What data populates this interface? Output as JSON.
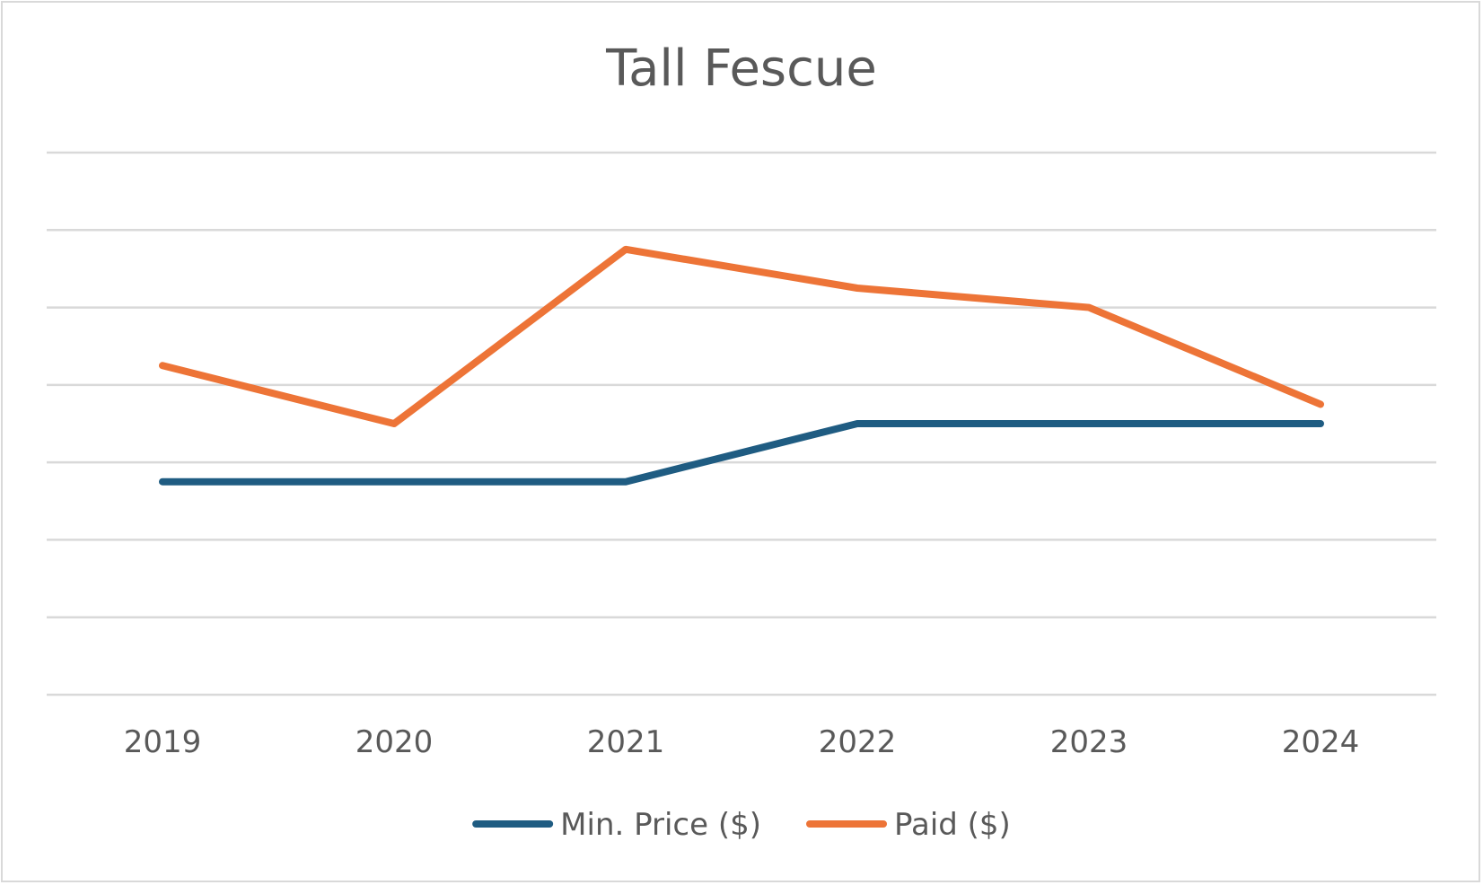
{
  "chart_data": {
    "type": "line",
    "title": "Tall Fescue",
    "xlabel": "",
    "ylabel": "",
    "categories": [
      "2019",
      "2020",
      "2021",
      "2022",
      "2023",
      "2024"
    ],
    "ylim": [
      0,
      7
    ],
    "grid": true,
    "legend_position": "bottom",
    "series": [
      {
        "name": "Min. Price ($)",
        "color": "#1f5c82",
        "values": [
          2.75,
          2.75,
          2.75,
          3.5,
          3.5,
          3.5
        ]
      },
      {
        "name": "Paid ($)",
        "color": "#ed7437",
        "values": [
          4.25,
          3.5,
          5.75,
          5.25,
          5.0,
          3.75
        ]
      }
    ]
  }
}
